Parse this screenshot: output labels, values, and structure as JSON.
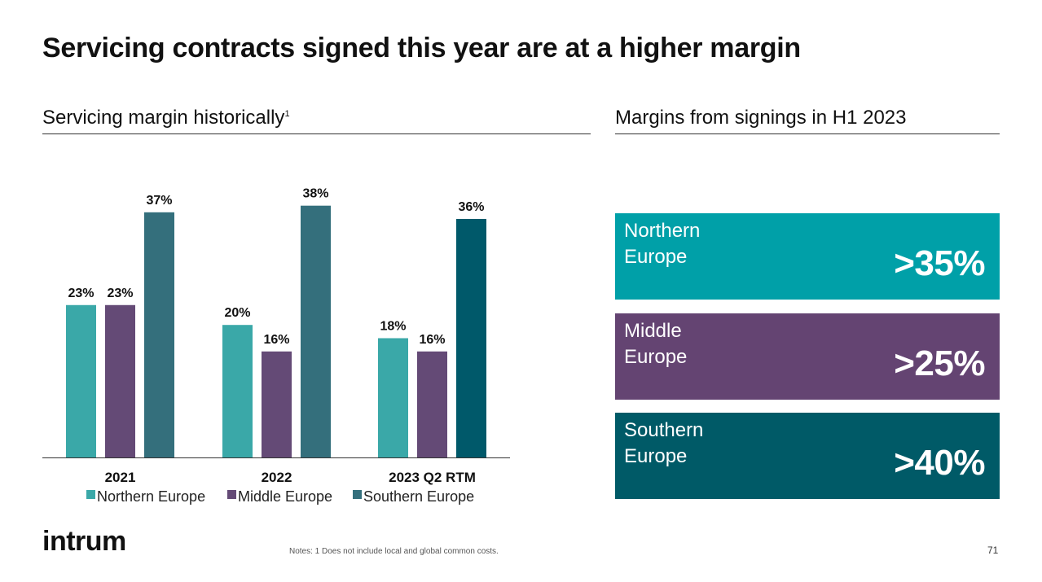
{
  "title": "Servicing contracts signed this year are at a higher margin",
  "left_subtitle": "Servicing margin historically",
  "left_subtitle_sup": "1",
  "right_subtitle": "Margins from signings in H1 2023",
  "chart_data": {
    "type": "bar",
    "categories": [
      "2021",
      "2022",
      "2023 Q2 RTM"
    ],
    "series": [
      {
        "name": "Northern Europe",
        "values": [
          23,
          20,
          18
        ],
        "labels": [
          "23%",
          "20%",
          "18%"
        ],
        "color": "#3aa8a8"
      },
      {
        "name": "Middle Europe",
        "values": [
          23,
          16,
          16
        ],
        "labels": [
          "23%",
          "16%",
          "16%"
        ],
        "color": "#644a76"
      },
      {
        "name": "Southern Europe",
        "values": [
          37,
          38,
          36
        ],
        "labels": [
          "37%",
          "38%",
          "36%"
        ],
        "colors": [
          "#346f7c",
          "#346f7c",
          "#00596a"
        ]
      }
    ],
    "ylim": [
      0,
      40
    ],
    "legend_position": "bottom",
    "grid": false
  },
  "signings": [
    {
      "label": "Northern\nEurope",
      "value": ">35%",
      "color": "#00a0a8"
    },
    {
      "label": "Middle\nEurope",
      "value": ">25%",
      "color": "#644472"
    },
    {
      "label": "Southern\nEurope",
      "value": ">40%",
      "color": "#005a67"
    }
  ],
  "logo": "intrum",
  "notes": "Notes: 1 Does not include local and global common costs.",
  "page_number": "71"
}
